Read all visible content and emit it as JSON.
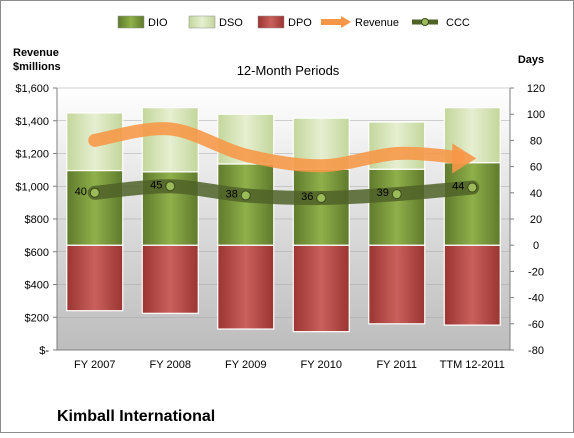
{
  "chart_data": {
    "type": "bar",
    "title": "12-Month Periods",
    "company": "Kimball International",
    "left_axis_label_line1": "Revenue",
    "left_axis_label_line2": "$millions",
    "right_axis_label": "Days",
    "categories": [
      "FY 2007",
      "FY 2008",
      "FY 2009",
      "FY 2010",
      "FY 2011",
      "TTM 12-2011"
    ],
    "left_axis": {
      "min": 0,
      "max": 1600,
      "step": 200,
      "ticks": [
        "$-",
        "$200",
        "$400",
        "$600",
        "$800",
        "$1,000",
        "$1,200",
        "$1,400",
        "$1,600"
      ]
    },
    "right_axis": {
      "min": -80,
      "max": 120,
      "step": 20,
      "ticks": [
        "-80",
        "-60",
        "-40",
        "-20",
        "0",
        "20",
        "40",
        "60",
        "80",
        "100",
        "120"
      ]
    },
    "legend": {
      "position": "top",
      "items": [
        {
          "name": "DIO",
          "key": "dio"
        },
        {
          "name": "DSO",
          "key": "dso"
        },
        {
          "name": "DPO",
          "key": "dpo"
        },
        {
          "name": "Revenue",
          "key": "revenue"
        },
        {
          "name": "CCC",
          "key": "ccc"
        }
      ]
    },
    "series": [
      {
        "name": "DIO",
        "axis": "right",
        "values": [
          57,
          56,
          62,
          58,
          58,
          63
        ]
      },
      {
        "name": "DSO",
        "axis": "right",
        "values": [
          44,
          49,
          38,
          39,
          36,
          42
        ]
      },
      {
        "name": "DPO",
        "axis": "right",
        "values": [
          -50,
          -52,
          -64,
          -66,
          -60,
          -61
        ]
      },
      {
        "name": "Revenue",
        "axis": "left",
        "values": [
          1280,
          1350,
          1190,
          1125,
          1200,
          1170
        ]
      },
      {
        "name": "CCC",
        "axis": "right",
        "values": [
          40,
          45,
          38,
          36,
          39,
          44
        ]
      }
    ],
    "ccc_labels": [
      "40",
      "45",
      "38",
      "36",
      "39",
      "44"
    ],
    "colors": {
      "dio": "#77933c",
      "dso": "#d7e4bd",
      "dpo": "#c0504d",
      "revenue": "#f79646",
      "ccc": "#4f6228"
    },
    "grid": true
  }
}
